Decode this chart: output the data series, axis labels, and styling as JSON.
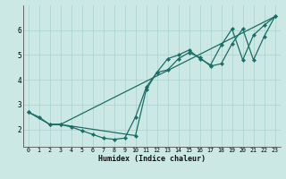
{
  "xlabel": "Humidex (Indice chaleur)",
  "bg_color": "#cce8e5",
  "grid_color": "#afd4d0",
  "line_color": "#1a6e65",
  "xlim": [
    -0.5,
    23.5
  ],
  "ylim": [
    1.3,
    7.0
  ],
  "yticks": [
    2,
    3,
    4,
    5,
    6
  ],
  "xticks": [
    0,
    1,
    2,
    3,
    4,
    5,
    6,
    7,
    8,
    9,
    10,
    11,
    12,
    13,
    14,
    15,
    16,
    17,
    18,
    19,
    20,
    21,
    22,
    23
  ],
  "series1_x": [
    0,
    1,
    2,
    3,
    4,
    5,
    6,
    7,
    8,
    9,
    10,
    11,
    12,
    13,
    14,
    15,
    16,
    17,
    18,
    19,
    20,
    21,
    22,
    23
  ],
  "series1_y": [
    2.7,
    2.5,
    2.2,
    2.2,
    2.1,
    1.95,
    1.8,
    1.65,
    1.6,
    1.65,
    2.5,
    3.7,
    4.3,
    4.85,
    5.0,
    5.2,
    4.85,
    4.6,
    5.4,
    6.05,
    4.8,
    5.8,
    6.2,
    6.55
  ],
  "series2_x": [
    0,
    2,
    3,
    10,
    11,
    12,
    13,
    14,
    15,
    16,
    17,
    18,
    19,
    20,
    21,
    22,
    23
  ],
  "series2_y": [
    2.7,
    2.2,
    2.2,
    1.75,
    3.6,
    4.3,
    4.4,
    4.85,
    5.1,
    4.9,
    4.55,
    4.65,
    5.45,
    6.05,
    4.8,
    5.75,
    6.55
  ],
  "series3_x": [
    2,
    3,
    23
  ],
  "series3_y": [
    2.2,
    2.2,
    6.55
  ]
}
